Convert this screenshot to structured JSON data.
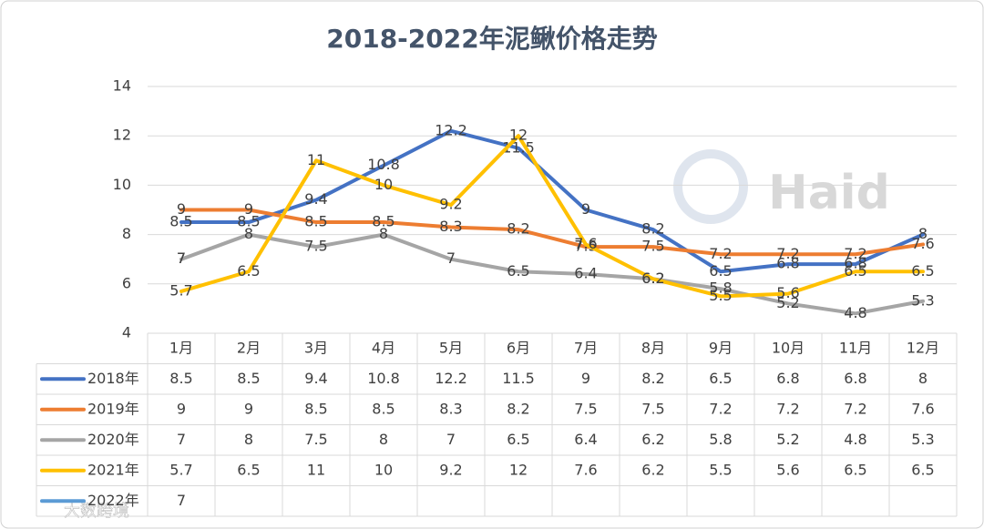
{
  "chart_data": {
    "type": "line",
    "title": "2018-2022年泥鳅价格走势",
    "categories": [
      "1月",
      "2月",
      "3月",
      "4月",
      "5月",
      "6月",
      "7月",
      "8月",
      "9月",
      "10月",
      "11月",
      "12月"
    ],
    "series": [
      {
        "name": "2018年",
        "color": "#4472c4",
        "values": [
          8.5,
          8.5,
          9.4,
          10.8,
          12.2,
          11.5,
          9,
          8.2,
          6.5,
          6.8,
          6.8,
          8
        ]
      },
      {
        "name": "2019年",
        "color": "#ed7d31",
        "values": [
          9,
          9,
          8.5,
          8.5,
          8.3,
          8.2,
          7.5,
          7.5,
          7.2,
          7.2,
          7.2,
          7.6
        ]
      },
      {
        "name": "2020年",
        "color": "#a5a5a5",
        "values": [
          7,
          8,
          7.5,
          8,
          7,
          6.5,
          6.4,
          6.2,
          5.8,
          5.2,
          4.8,
          5.3
        ]
      },
      {
        "name": "2021年",
        "color": "#ffc000",
        "values": [
          5.7,
          6.5,
          11,
          10,
          9.2,
          12,
          7.6,
          6.2,
          5.5,
          5.6,
          6.5,
          6.5
        ]
      },
      {
        "name": "2022年",
        "color": "#5b9bd5",
        "values": [
          7,
          null,
          null,
          null,
          null,
          null,
          null,
          null,
          null,
          null,
          null,
          null
        ]
      }
    ],
    "ylim": [
      4,
      14
    ],
    "yticks": [
      4,
      6,
      8,
      10,
      12,
      14
    ],
    "grid": true,
    "watermarks": [
      "Haid",
      "大数跨境"
    ]
  }
}
